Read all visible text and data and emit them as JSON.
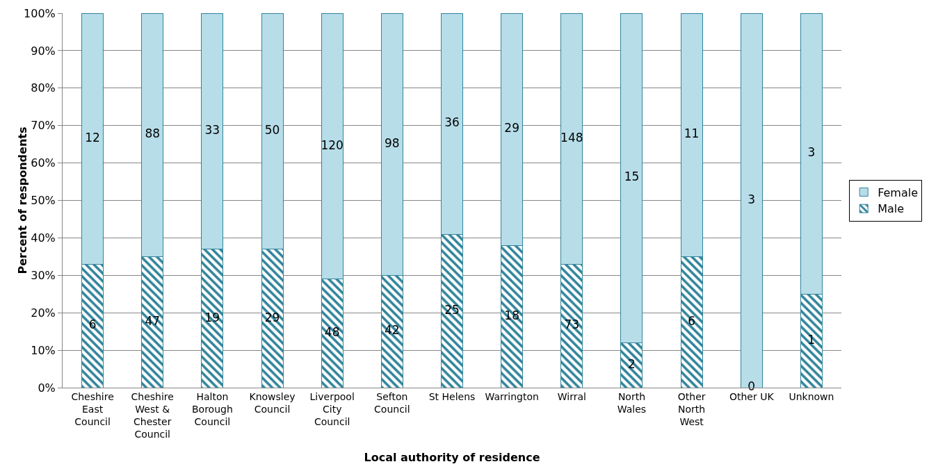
{
  "chart_data": {
    "type": "bar",
    "stacked": true,
    "xlabel": "Local authority of residence",
    "ylabel": "Percent of respondents",
    "categories": [
      "Cheshire East Council",
      "Cheshire West & Chester Council",
      "Halton Borough Council",
      "Knowsley Council",
      "Liverpool City Council",
      "Sefton Council",
      "St Helens",
      "Warrington",
      "Wirral",
      "North Wales",
      "Other North West",
      "Other UK",
      "Unknown"
    ],
    "series": [
      {
        "name": "Male",
        "color": "#31849b",
        "values": [
          33,
          35,
          37,
          37,
          29,
          30,
          41,
          38,
          33,
          12,
          35,
          0,
          25
        ]
      },
      {
        "name": "Female",
        "color": "#b7dde8",
        "values": [
          67,
          65,
          63,
          63,
          71,
          70,
          59,
          62,
          67,
          88,
          65,
          100,
          75
        ]
      }
    ],
    "annotations": [
      "6",
      "47",
      "19",
      "29",
      "48",
      "42",
      "25",
      "18",
      "73",
      "2",
      "6",
      "0",
      "1",
      "12",
      "88",
      "33",
      "50",
      "120",
      "98",
      "36",
      "29",
      "148",
      "15",
      "11",
      "3",
      "3"
    ],
    "ylim": [
      0,
      100
    ],
    "yticks": [
      {
        "value": 0,
        "label": "0%"
      },
      {
        "value": 10,
        "label": "10%"
      },
      {
        "value": 20,
        "label": "20%"
      },
      {
        "value": 30,
        "label": "30%"
      },
      {
        "value": 40,
        "label": "40%"
      },
      {
        "value": 50,
        "label": "50%"
      },
      {
        "value": 60,
        "label": "60%"
      },
      {
        "value": 70,
        "label": "70%"
      },
      {
        "value": 80,
        "label": "80%"
      },
      {
        "value": 90,
        "label": "90%"
      },
      {
        "value": 100,
        "label": "100%"
      }
    ],
    "grid": "y",
    "legend": "right"
  }
}
